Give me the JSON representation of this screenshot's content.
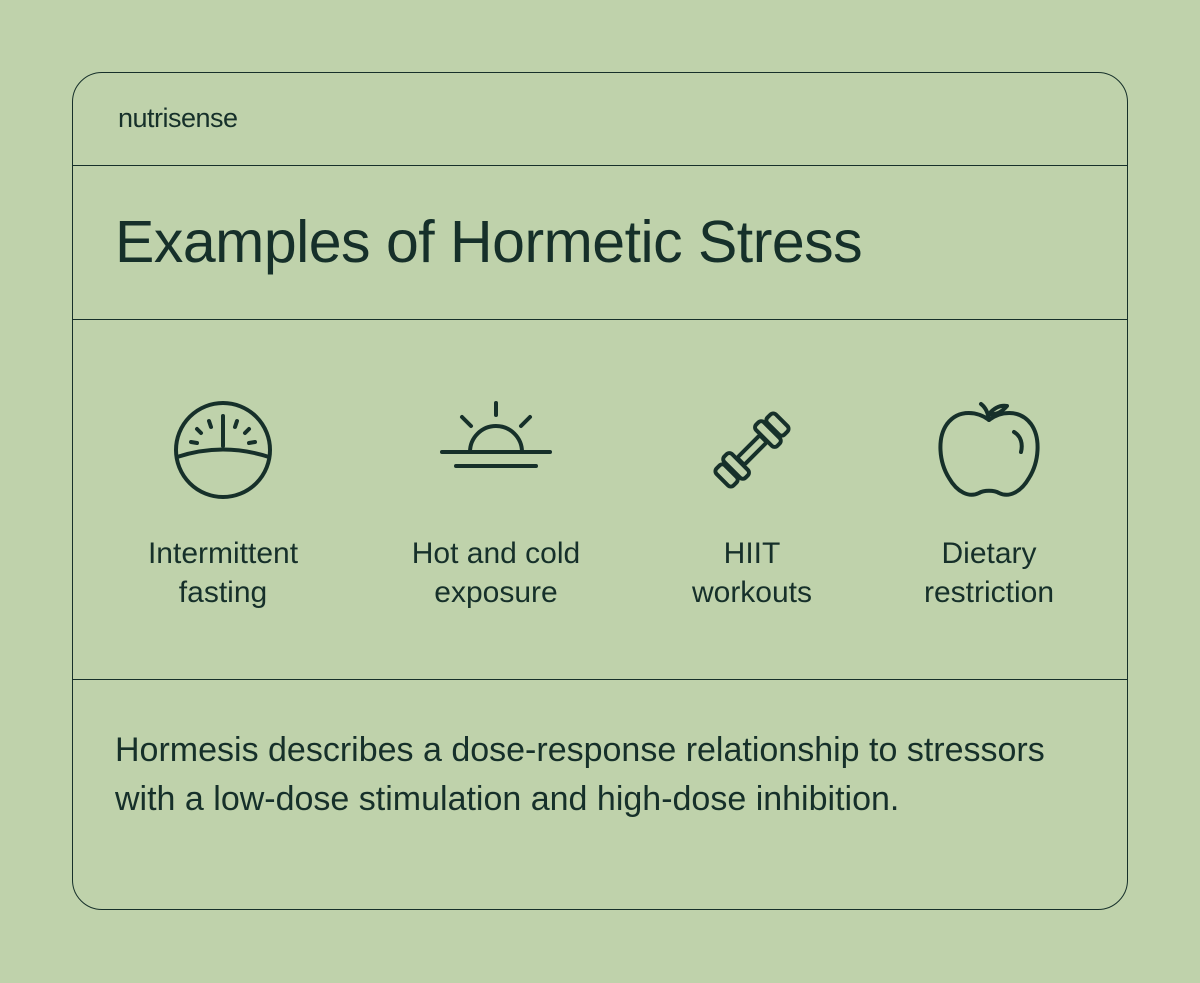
{
  "brand": "nutrisense",
  "title": "Examples of Hormetic Stress",
  "items": [
    {
      "label_line1": "Intermittent",
      "label_line2": "fasting",
      "icon": "scale-gauge-icon"
    },
    {
      "label_line1": "Hot and cold",
      "label_line2": "exposure",
      "icon": "sunrise-icon"
    },
    {
      "label_line1": "HIIT",
      "label_line2": "workouts",
      "icon": "dumbbell-icon"
    },
    {
      "label_line1": "Dietary",
      "label_line2": "restriction",
      "icon": "apple-icon"
    }
  ],
  "description": "Hormesis describes a dose-response relationship to stressors with a low-dose stimulation and high-dose inhibition.",
  "colors": {
    "background": "#bfd2ab",
    "ink": "#16302a"
  }
}
